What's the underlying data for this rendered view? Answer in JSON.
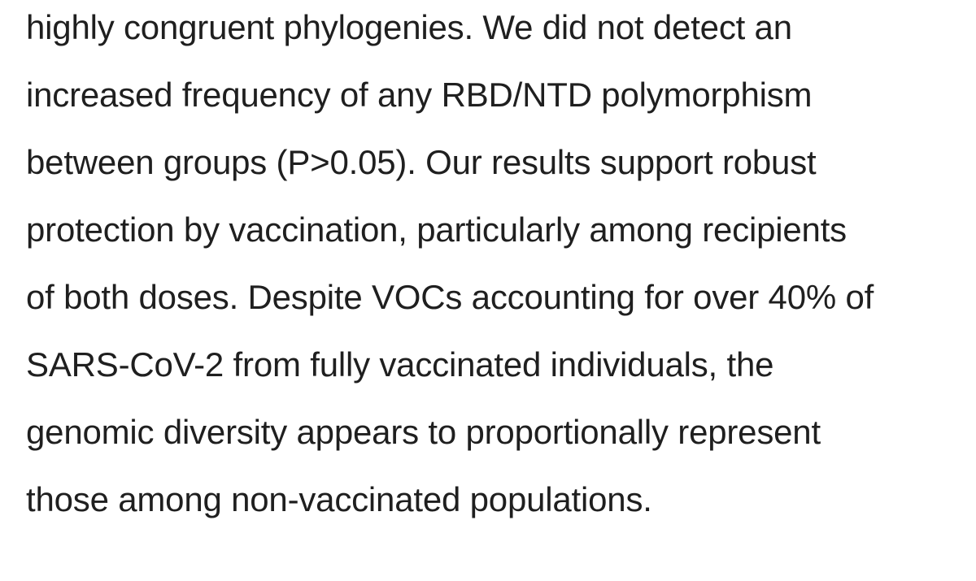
{
  "document": {
    "lines": [
      "highly congruent phylogenies. We did not detect an",
      "increased frequency of any RBD/NTD polymorphism",
      "between groups (P>0.05). Our results support robust",
      "protection by vaccination, particularly among recipients",
      "of both doses. Despite VOCs accounting for over 40% of",
      "SARS-CoV-2 from fully vaccinated individuals, the",
      "genomic diversity appears to proportionally represent",
      "those among non-vaccinated populations."
    ]
  }
}
